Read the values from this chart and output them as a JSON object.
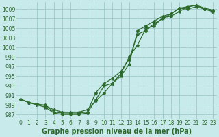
{
  "bg_color": "#c8eaea",
  "grid_color": "#a0c8c8",
  "line_color": "#2d6a2d",
  "marker_color": "#2d6a2d",
  "xlabel": "Graphe pression niveau de la mer (hPa)",
  "xlabel_fontsize": 7.0,
  "tick_fontsize": 5.5,
  "xlim": [
    -0.5,
    23.5
  ],
  "ylim": [
    986.0,
    1010.5
  ],
  "yticks": [
    987,
    989,
    991,
    993,
    995,
    997,
    999,
    1001,
    1003,
    1005,
    1007,
    1009
  ],
  "xticks": [
    0,
    1,
    2,
    3,
    4,
    5,
    6,
    7,
    8,
    9,
    10,
    11,
    12,
    13,
    14,
    15,
    16,
    17,
    18,
    19,
    20,
    21,
    22,
    23
  ],
  "series1_x": [
    0,
    1,
    2,
    3,
    4,
    5,
    6,
    7,
    8,
    9,
    10,
    11,
    12,
    13,
    14,
    15,
    16,
    17,
    18,
    19,
    20,
    21,
    22,
    23
  ],
  "series1_y": [
    990.2,
    989.5,
    989.0,
    988.5,
    987.3,
    987.0,
    987.0,
    987.0,
    987.3,
    990.0,
    993.0,
    993.5,
    995.5,
    999.0,
    1001.5,
    1005.0,
    1005.5,
    1007.2,
    1007.5,
    1008.5,
    1009.5,
    1009.8,
    1009.2,
    1008.8
  ],
  "series2_x": [
    0,
    1,
    2,
    3,
    4,
    5,
    6,
    7,
    8,
    9,
    10,
    11,
    12,
    13,
    14,
    15,
    16,
    17,
    18,
    19,
    20,
    21,
    22,
    23
  ],
  "series2_y": [
    990.2,
    989.5,
    989.0,
    989.0,
    987.5,
    987.3,
    987.3,
    987.3,
    987.5,
    991.5,
    993.5,
    994.5,
    996.0,
    998.5,
    1003.8,
    1004.5,
    1006.0,
    1007.0,
    1008.0,
    1009.2,
    1009.5,
    1009.8,
    1009.0,
    1008.5
  ],
  "series3_x": [
    0,
    1,
    2,
    3,
    4,
    5,
    6,
    7,
    8,
    9,
    10,
    11,
    12,
    13,
    14,
    15,
    16,
    17,
    18,
    19,
    20,
    21,
    22,
    23
  ],
  "series3_y": [
    990.2,
    989.5,
    989.2,
    988.8,
    988.0,
    987.5,
    987.5,
    987.5,
    988.0,
    989.8,
    991.5,
    993.5,
    995.0,
    997.5,
    1004.5,
    1005.5,
    1006.5,
    1007.5,
    1008.0,
    1009.2,
    1009.0,
    1009.5,
    1009.0,
    1008.5
  ]
}
